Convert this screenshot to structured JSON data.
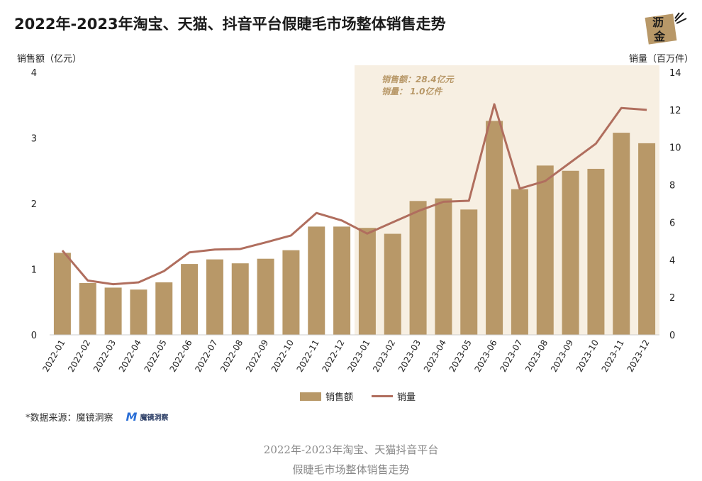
{
  "title": "2022年-2023年淘宝、天猫、抖音平台假睫毛市场整体销售走势",
  "logo": {
    "line1": "沥",
    "line2": "金"
  },
  "left_axis_title": "销售额（亿元）",
  "right_axis_title": "销量（百万件）",
  "annotation": {
    "line1": "销售额：28.4亿元",
    "line2": "销量：    1.0亿件"
  },
  "legend": {
    "bar_label": "销售额",
    "line_label": "销量"
  },
  "source": {
    "text": "*数据来源：魔镜洞察",
    "logo_text": "魔镜洞察"
  },
  "caption": {
    "line1": "2022年-2023年淘宝、天猫抖音平台",
    "line2": "假睫毛市场整体销售走势"
  },
  "colors": {
    "bar": "#b89868",
    "line": "#b06e5e",
    "highlight": "#f7efe2"
  },
  "chart_data": {
    "type": "bar+line",
    "categories": [
      "2022-01",
      "2022-02",
      "2022-03",
      "2022-04",
      "2022-05",
      "2022-06",
      "2022-07",
      "2022-08",
      "2022-09",
      "2022-10",
      "2022-11",
      "2022-12",
      "2023-01",
      "2023-02",
      "2023-03",
      "2023-04",
      "2023-05",
      "2023-06",
      "2023-07",
      "2023-08",
      "2023-09",
      "2023-10",
      "2023-11",
      "2023-12"
    ],
    "series": [
      {
        "name": "销售额",
        "type": "bar",
        "axis": "left",
        "values": [
          1.25,
          0.79,
          0.72,
          0.69,
          0.8,
          1.08,
          1.15,
          1.09,
          1.16,
          1.29,
          1.65,
          1.65,
          1.63,
          1.54,
          2.04,
          2.08,
          1.91,
          3.26,
          2.22,
          2.58,
          2.5,
          2.53,
          3.08,
          2.92
        ]
      },
      {
        "name": "销量",
        "type": "line",
        "axis": "right",
        "values": [
          4.5,
          2.9,
          2.7,
          2.8,
          3.4,
          4.4,
          4.55,
          4.58,
          4.93,
          5.3,
          6.5,
          6.1,
          5.4,
          6.0,
          6.6,
          7.1,
          7.15,
          12.3,
          7.8,
          8.2,
          9.2,
          10.2,
          12.1,
          12.0
        ]
      }
    ],
    "y_left": {
      "min": 0,
      "max": 4,
      "ticks": [
        0,
        1,
        2,
        3,
        4
      ]
    },
    "y_right": {
      "min": 0,
      "max": 14,
      "ticks": [
        0,
        2,
        4,
        6,
        8,
        10,
        12,
        14
      ]
    },
    "highlight_from": "2023-01",
    "grid": false,
    "legend_position": "bottom"
  }
}
